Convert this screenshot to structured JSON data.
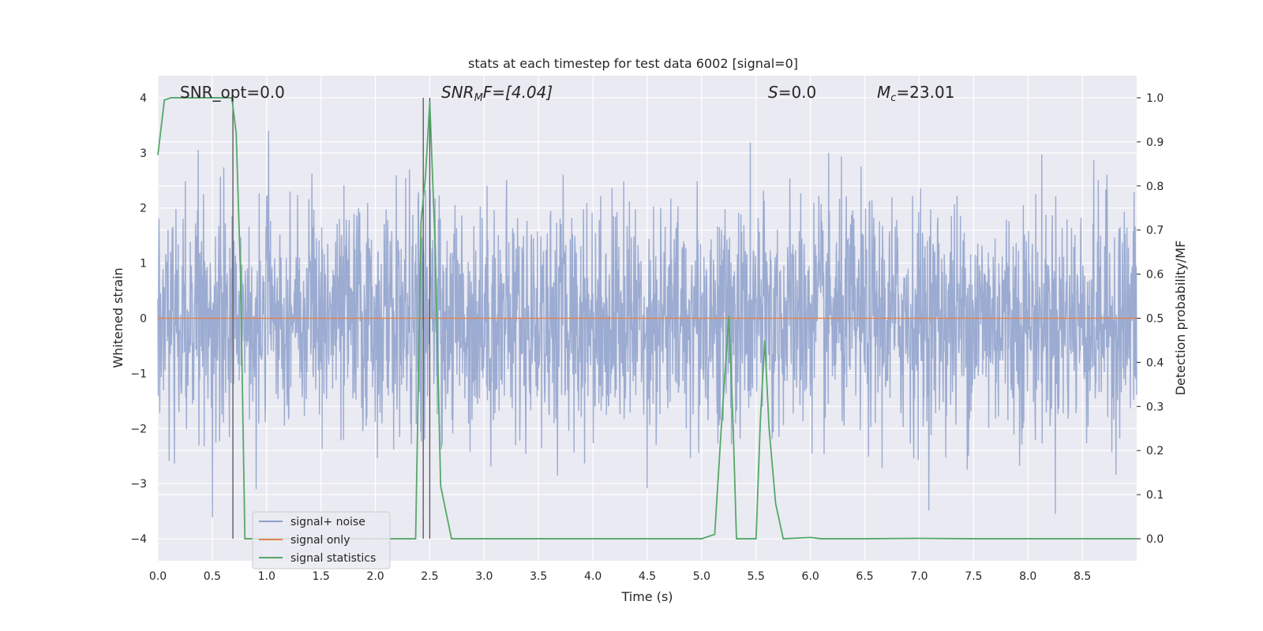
{
  "chart_data": {
    "type": "line",
    "title": "stats at each timestep for test data 6002 [signal=0]",
    "xlabel": "Time (s)",
    "ylabel_left": "Whitened strain",
    "ylabel_right": "Detection probability/MF",
    "xlim": [
      0,
      9
    ],
    "ylim_left": [
      -4.4,
      4.4
    ],
    "ylim_right": [
      -0.05,
      1.05
    ],
    "x_ticks": [
      "0.0",
      "0.5",
      "1.0",
      "1.5",
      "2.0",
      "2.5",
      "3.0",
      "3.5",
      "4.0",
      "4.5",
      "5.0",
      "5.5",
      "6.0",
      "6.5",
      "7.0",
      "7.5",
      "8.0",
      "8.5"
    ],
    "y_ticks_left": [
      "−4",
      "−3",
      "−2",
      "−1",
      "0",
      "1",
      "2",
      "3",
      "4"
    ],
    "y_ticks_right": [
      "0.0",
      "0.1",
      "0.2",
      "0.3",
      "0.4",
      "0.5",
      "0.6",
      "0.7",
      "0.8",
      "0.9",
      "1.0"
    ],
    "grid": true,
    "legend_position": "lower-left",
    "annotations": {
      "snr_opt": "SNR_opt=0.0",
      "snr_mf_main": "SNR",
      "snr_mf_sub": "M",
      "snr_mf_rest": "F=[4.04]",
      "s_main": "S",
      "s_rest": "=0.0",
      "mc_main": "M",
      "mc_sub": "c",
      "mc_rest": "=23.01"
    },
    "vertical_lines_x": [
      0.69,
      2.44,
      2.5
    ],
    "series": [
      {
        "name": "signal+ noise",
        "color": "#8da0cb",
        "description_values": "whitened noise, band roughly -2.5 to 2.5 with peaks near ±4"
      },
      {
        "name": "signal only",
        "color": "#dd8452",
        "x": [
          0,
          9
        ],
        "y": [
          0,
          0
        ]
      },
      {
        "name": "signal statistics",
        "color": "#55a868",
        "axis": "right",
        "x": [
          0.0,
          0.06,
          0.12,
          0.2,
          0.4,
          0.6,
          0.68,
          0.72,
          0.76,
          0.8,
          0.85,
          0.9,
          1.0,
          1.5,
          2.0,
          2.37,
          2.42,
          2.46,
          2.5,
          2.55,
          2.6,
          2.7,
          2.8,
          2.9,
          3.5,
          4.0,
          4.5,
          5.0,
          5.12,
          5.18,
          5.25,
          5.29,
          5.32,
          5.5,
          5.54,
          5.58,
          5.62,
          5.68,
          5.75,
          6.0,
          6.1,
          6.5,
          7.0,
          7.5,
          8.0,
          9.0
        ],
        "y": [
          0.87,
          0.995,
          1.0,
          1.0,
          1.0,
          1.0,
          1.0,
          0.92,
          0.6,
          0.0,
          0.0,
          0.0,
          0.0,
          0.0,
          0.0,
          0.0,
          0.72,
          0.82,
          0.99,
          0.66,
          0.12,
          0.0,
          0.0,
          0.0,
          0.0,
          0.0,
          0.0,
          0.0,
          0.01,
          0.25,
          0.505,
          0.25,
          0.0,
          0.0,
          0.27,
          0.45,
          0.25,
          0.08,
          0.0,
          0.003,
          0.0,
          0.0,
          0.001,
          0.0,
          0.0,
          0.0
        ]
      }
    ]
  }
}
